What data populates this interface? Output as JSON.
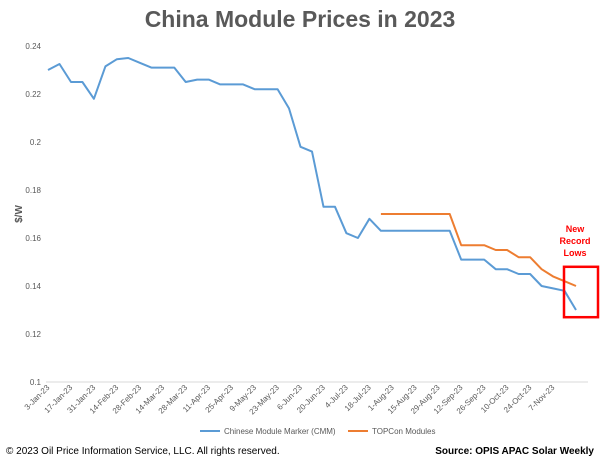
{
  "chart_data": {
    "type": "line",
    "title": "China Module Prices in 2023",
    "xlabel": "",
    "ylabel": "$/W",
    "ylim": [
      0.1,
      0.24
    ],
    "yticks": [
      "0.1",
      "0.12",
      "0.14",
      "0.16",
      "0.18",
      "0.2",
      "0.22",
      "0.24"
    ],
    "grid": false,
    "legend_position": "bottom",
    "x_tick_labels": [
      "3-Jan-23",
      "17-Jan-23",
      "31-Jan-23",
      "14-Feb-23",
      "28-Feb-23",
      "14-Mar-23",
      "28-Mar-23",
      "11-Apr-23",
      "25-Apr-23",
      "9-May-23",
      "23-May-23",
      "6-Jun-23",
      "20-Jun-23",
      "4-Jul-23",
      "18-Jul-23",
      "1-Aug-23",
      "15-Aug-23",
      "29-Aug-23",
      "12-Sep-23",
      "26-Sep-23",
      "10-Oct-23",
      "24-Oct-23",
      "7-Nov-23"
    ],
    "series": [
      {
        "name": "Chinese Module Marker (CMM)",
        "color": "#5b9bd5",
        "values": [
          0.23,
          0.2325,
          0.225,
          0.225,
          0.218,
          0.2315,
          0.2345,
          0.235,
          0.233,
          0.231,
          0.231,
          0.231,
          0.225,
          0.226,
          0.226,
          0.224,
          0.224,
          0.224,
          0.222,
          0.222,
          0.222,
          0.214,
          0.198,
          0.196,
          0.173,
          0.173,
          0.162,
          0.16,
          0.168,
          0.163,
          0.163,
          0.163,
          0.163,
          0.163,
          0.163,
          0.163,
          0.151,
          0.151,
          0.151,
          0.147,
          0.147,
          0.145,
          0.145,
          0.14,
          0.139,
          0.138,
          0.13
        ]
      },
      {
        "name": "TOPCon Modules",
        "color": "#ed7d31",
        "values": [
          null,
          null,
          null,
          null,
          null,
          null,
          null,
          null,
          null,
          null,
          null,
          null,
          null,
          null,
          null,
          null,
          null,
          null,
          null,
          null,
          null,
          null,
          null,
          null,
          null,
          null,
          null,
          null,
          null,
          0.17,
          0.17,
          0.17,
          0.17,
          0.17,
          0.17,
          0.17,
          0.157,
          0.157,
          0.157,
          0.155,
          0.155,
          0.152,
          0.152,
          0.147,
          0.144,
          0.142,
          0.14
        ]
      }
    ],
    "annotation": {
      "text_lines": [
        "New",
        "Record",
        "Lows"
      ],
      "color": "#ff0000"
    }
  },
  "footer": {
    "copyright": "© 2023  Oil Price Information Service, LLC. All rights reserved.",
    "source": "Source: OPIS APAC Solar Weekly"
  }
}
